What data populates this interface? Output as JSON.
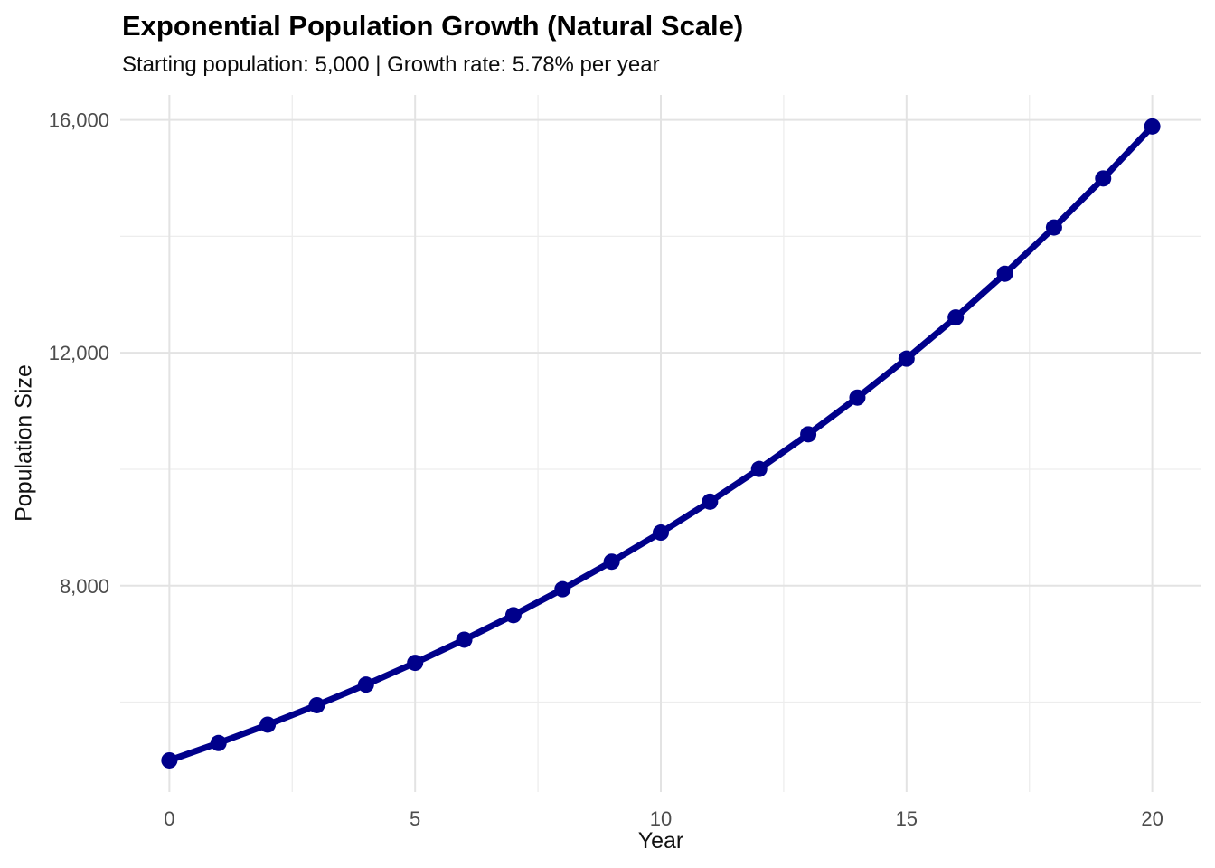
{
  "chart_data": {
    "type": "line",
    "title": "Exponential Population Growth (Natural Scale)",
    "subtitle": "Starting population: 5,000 | Growth rate: 5.78% per year",
    "xlabel": "Year",
    "ylabel": "Population Size",
    "series": [
      {
        "name": "Population",
        "x": [
          0,
          1,
          2,
          3,
          4,
          5,
          6,
          7,
          8,
          9,
          10,
          11,
          12,
          13,
          14,
          15,
          16,
          17,
          18,
          19,
          20
        ],
        "y": [
          5000,
          5298,
          5613,
          5947,
          6301,
          6675,
          7073,
          7494,
          7940,
          8412,
          8912,
          9443,
          10005,
          10600,
          11231,
          11899,
          12607,
          13358,
          14152,
          14994,
          15887
        ]
      }
    ],
    "starting_population": "5,000",
    "growth_rate_percent_per_year": 5.78,
    "x_domain": [
      -1,
      21
    ],
    "y_domain": [
      4456,
      16428
    ],
    "x_ticks": {
      "values": [
        0,
        5,
        10,
        15,
        20
      ],
      "labels": [
        "0",
        "5",
        "10",
        "15",
        "20"
      ]
    },
    "x_minor_ticks": [
      2.5,
      7.5,
      12.5,
      17.5
    ],
    "y_ticks": {
      "values": [
        8000,
        12000,
        16000
      ],
      "labels": [
        "8,000",
        "12,000",
        "16,000"
      ]
    },
    "y_minor_ticks": [
      6000,
      10000,
      14000
    ],
    "legend_position": "none",
    "grid": "major+minor",
    "style": {
      "line_color": "#00008B",
      "point_color": "#00008B",
      "line_width": 7,
      "point_radius": 9,
      "grid_major_color": "#E3E3E3",
      "grid_minor_color": "#EDEDED",
      "tick_label_color": "#4D4D4D",
      "title_color": "#000000",
      "background": "#FFFFFF"
    }
  }
}
